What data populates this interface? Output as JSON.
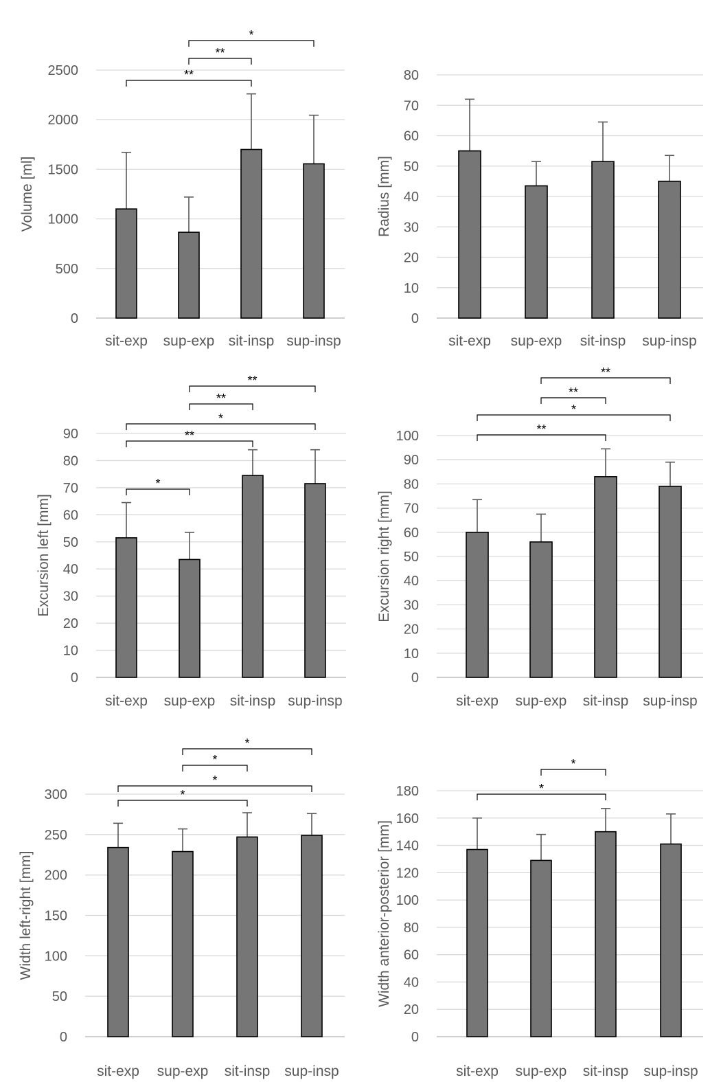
{
  "figure": {
    "bar_color": "#767676",
    "bar_stroke": "#000000",
    "grid_color": "#d9d9d9",
    "text_color": "#595959"
  },
  "chart_data": [
    {
      "type": "bar",
      "categories": [
        "sit-exp",
        "sup-exp",
        "sit-insp",
        "sup-insp"
      ],
      "values": [
        1100,
        865,
        1700,
        1555
      ],
      "errors": [
        570,
        355,
        560,
        490
      ],
      "ylabel": "Volume [ml]",
      "ylim": [
        0,
        2500
      ],
      "yticks": [
        0,
        500,
        1000,
        1500,
        2000,
        2500
      ],
      "grid": true,
      "significance": [
        {
          "from": 0,
          "to": 2,
          "label": "**"
        },
        {
          "from": 1,
          "to": 2,
          "label": "**"
        },
        {
          "from": 1,
          "to": 3,
          "label": "*"
        }
      ]
    },
    {
      "type": "bar",
      "categories": [
        "sit-exp",
        "sup-exp",
        "sit-insp",
        "sup-insp"
      ],
      "values": [
        55,
        43.5,
        51.5,
        45
      ],
      "errors": [
        17,
        8,
        13,
        8.5
      ],
      "ylabel": "Radius [mm]",
      "ylim": [
        0,
        80
      ],
      "yticks": [
        0,
        10,
        20,
        30,
        40,
        50,
        60,
        70,
        80
      ],
      "grid": true,
      "significance": []
    },
    {
      "type": "bar",
      "categories": [
        "sit-exp",
        "sup-exp",
        "sit-insp",
        "sup-insp"
      ],
      "values": [
        51.5,
        43.5,
        74.5,
        71.5
      ],
      "errors": [
        13,
        10,
        9.5,
        12.5
      ],
      "ylabel": "Excursion left [mm]",
      "ylim": [
        0,
        90
      ],
      "yticks": [
        0,
        10,
        20,
        30,
        40,
        50,
        60,
        70,
        80,
        90
      ],
      "grid": true,
      "significance": [
        {
          "from": 0,
          "to": 1,
          "label": "*"
        },
        {
          "from": 0,
          "to": 2,
          "label": "**"
        },
        {
          "from": 0,
          "to": 3,
          "label": "*"
        },
        {
          "from": 1,
          "to": 2,
          "label": "**"
        },
        {
          "from": 1,
          "to": 3,
          "label": "**"
        }
      ]
    },
    {
      "type": "bar",
      "categories": [
        "sit-exp",
        "sup-exp",
        "sit-insp",
        "sup-insp"
      ],
      "values": [
        60,
        56,
        83,
        79
      ],
      "errors": [
        13.5,
        11.5,
        11.5,
        10
      ],
      "ylabel": "Excursion right [mm]",
      "ylim": [
        0,
        100
      ],
      "yticks": [
        0,
        10,
        20,
        30,
        40,
        50,
        60,
        70,
        80,
        90,
        100
      ],
      "grid": true,
      "significance": [
        {
          "from": 0,
          "to": 2,
          "label": "**"
        },
        {
          "from": 0,
          "to": 3,
          "label": "*"
        },
        {
          "from": 1,
          "to": 2,
          "label": "**"
        },
        {
          "from": 1,
          "to": 3,
          "label": "**"
        }
      ]
    },
    {
      "type": "bar",
      "categories": [
        "sit-exp",
        "sup-exp",
        "sit-insp",
        "sup-insp"
      ],
      "values": [
        234,
        229,
        247,
        249
      ],
      "errors": [
        30,
        28,
        30,
        27
      ],
      "ylabel": "Width left-right [mm]",
      "ylim": [
        0,
        300
      ],
      "yticks": [
        0,
        50,
        100,
        150,
        200,
        250,
        300
      ],
      "grid": true,
      "significance": [
        {
          "from": 0,
          "to": 2,
          "label": "*"
        },
        {
          "from": 0,
          "to": 3,
          "label": "*"
        },
        {
          "from": 1,
          "to": 2,
          "label": "*"
        },
        {
          "from": 1,
          "to": 3,
          "label": "*"
        }
      ]
    },
    {
      "type": "bar",
      "categories": [
        "sit-exp",
        "sup-exp",
        "sit-insp",
        "sup-insp"
      ],
      "values": [
        137,
        129,
        150,
        141
      ],
      "errors": [
        23,
        19,
        17,
        22
      ],
      "ylabel": "Width anterior-posterior [mm]",
      "ylim": [
        0,
        180
      ],
      "yticks": [
        0,
        20,
        40,
        60,
        80,
        100,
        120,
        140,
        160,
        180
      ],
      "grid": true,
      "significance": [
        {
          "from": 0,
          "to": 2,
          "label": "*"
        },
        {
          "from": 1,
          "to": 2,
          "label": "*"
        }
      ]
    }
  ]
}
